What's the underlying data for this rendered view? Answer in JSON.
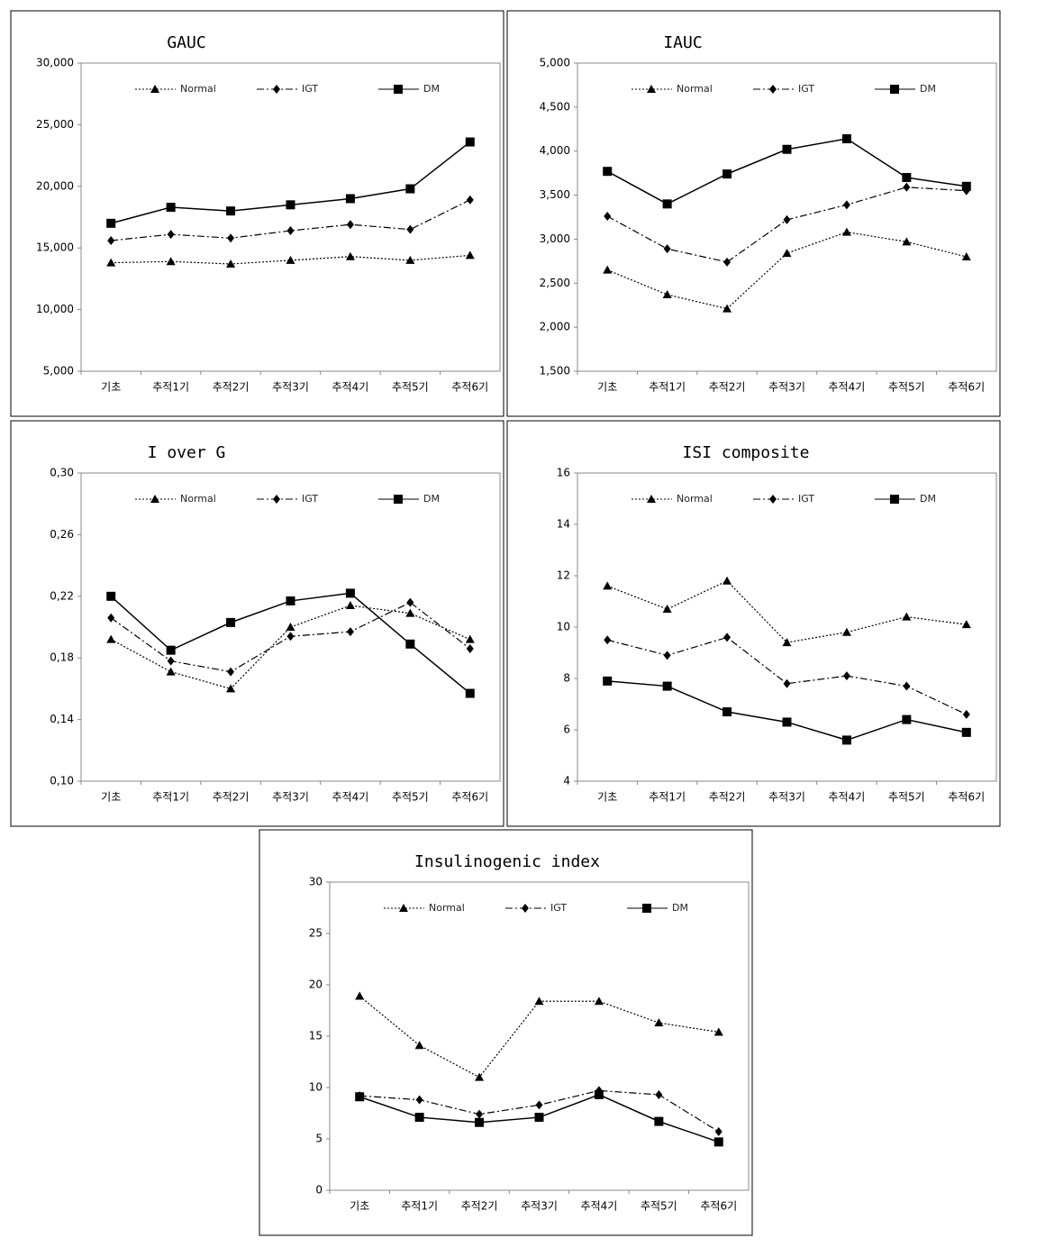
{
  "chart_data": [
    {
      "type": "line",
      "title": "GAUC",
      "categories": [
        "기초",
        "추적1기",
        "추적2기",
        "추적3기",
        "추적4기",
        "추적5기",
        "추적6기"
      ],
      "ylim": [
        5000,
        30000
      ],
      "yticks": [
        {
          "value": 5000,
          "label": "5,000"
        },
        {
          "value": 10000,
          "label": "10,000"
        },
        {
          "value": 15000,
          "label": "15,000"
        },
        {
          "value": 20000,
          "label": "20,000"
        },
        {
          "value": 25000,
          "label": "25,000"
        },
        {
          "value": 30000,
          "label": "30,000"
        }
      ],
      "series": [
        {
          "name": "Normal",
          "color": "#000000",
          "dash": "dotted",
          "marker": "triangle",
          "values": [
            13800,
            13900,
            13700,
            14000,
            14300,
            14000,
            14400
          ]
        },
        {
          "name": "IGT",
          "color": "#000000",
          "dash": "dashdot",
          "marker": "diamond",
          "values": [
            15600,
            16100,
            15800,
            16400,
            16900,
            16500,
            18900
          ]
        },
        {
          "name": "DM",
          "color": "#000000",
          "dash": "solid",
          "marker": "square",
          "values": [
            17000,
            18300,
            18000,
            18500,
            19000,
            19800,
            23600
          ]
        }
      ]
    },
    {
      "type": "line",
      "title": "IAUC",
      "categories": [
        "기초",
        "추적1기",
        "추적2기",
        "추적3기",
        "추적4기",
        "추적5기",
        "추적6기"
      ],
      "ylim": [
        1500,
        5000
      ],
      "yticks": [
        {
          "value": 1500,
          "label": "1,500"
        },
        {
          "value": 2000,
          "label": "2,000"
        },
        {
          "value": 2500,
          "label": "2,500"
        },
        {
          "value": 3000,
          "label": "3,000"
        },
        {
          "value": 3500,
          "label": "3,500"
        },
        {
          "value": 4000,
          "label": "4,000"
        },
        {
          "value": 4500,
          "label": "4,500"
        },
        {
          "value": 5000,
          "label": "5,000"
        }
      ],
      "series": [
        {
          "name": "Normal",
          "color": "#000000",
          "dash": "dotted",
          "marker": "triangle",
          "values": [
            2650,
            2370,
            2210,
            2840,
            3080,
            2970,
            2800
          ]
        },
        {
          "name": "IGT",
          "color": "#000000",
          "dash": "dashdot",
          "marker": "diamond",
          "values": [
            3260,
            2890,
            2740,
            3220,
            3390,
            3590,
            3550
          ]
        },
        {
          "name": "DM",
          "color": "#000000",
          "dash": "solid",
          "marker": "square",
          "values": [
            3770,
            3400,
            3740,
            4020,
            4140,
            3700,
            3600
          ]
        }
      ]
    },
    {
      "type": "line",
      "title": "I over G",
      "categories": [
        "기초",
        "추적1기",
        "추적2기",
        "추적3기",
        "추적4기",
        "추적5기",
        "추적6기"
      ],
      "ylim": [
        0.1,
        0.3
      ],
      "yticks": [
        {
          "value": 0.1,
          "label": "0,10"
        },
        {
          "value": 0.14,
          "label": "0,14"
        },
        {
          "value": 0.18,
          "label": "0,18"
        },
        {
          "value": 0.22,
          "label": "0,22"
        },
        {
          "value": 0.26,
          "label": "0,26"
        },
        {
          "value": 0.3,
          "label": "0,30"
        }
      ],
      "series": [
        {
          "name": "Normal",
          "color": "#000000",
          "dash": "dotted",
          "marker": "triangle",
          "values": [
            0.192,
            0.171,
            0.16,
            0.2,
            0.214,
            0.209,
            0.192
          ]
        },
        {
          "name": "IGT",
          "color": "#000000",
          "dash": "dashdot",
          "marker": "diamond",
          "values": [
            0.206,
            0.178,
            0.171,
            0.194,
            0.197,
            0.216,
            0.186
          ]
        },
        {
          "name": "DM",
          "color": "#000000",
          "dash": "solid",
          "marker": "square",
          "values": [
            0.22,
            0.185,
            0.203,
            0.217,
            0.222,
            0.189,
            0.157
          ]
        }
      ]
    },
    {
      "type": "line",
      "title": "ISI composite",
      "categories": [
        "기초",
        "추적1기",
        "추적2기",
        "추적3기",
        "추적4기",
        "추적5기",
        "추적6기"
      ],
      "ylim": [
        4,
        16
      ],
      "yticks": [
        4,
        6,
        8,
        10,
        12,
        14,
        16
      ],
      "series": [
        {
          "name": "Normal",
          "color": "#000000",
          "dash": "dotted",
          "marker": "triangle",
          "values": [
            11.6,
            10.7,
            11.8,
            9.4,
            9.8,
            10.4,
            10.1
          ]
        },
        {
          "name": "IGT",
          "color": "#000000",
          "dash": "dashdot",
          "marker": "diamond",
          "values": [
            9.5,
            8.9,
            9.6,
            7.8,
            8.1,
            7.7,
            6.6
          ]
        },
        {
          "name": "DM",
          "color": "#000000",
          "dash": "solid",
          "marker": "square",
          "values": [
            7.9,
            7.7,
            6.7,
            6.3,
            5.6,
            6.4,
            5.9
          ]
        }
      ]
    },
    {
      "type": "line",
      "title": "Insulinogenic index",
      "categories": [
        "기초",
        "추적1기",
        "추적2기",
        "추적3기",
        "추적4기",
        "추적5기",
        "추적6기"
      ],
      "ylim": [
        0,
        30
      ],
      "yticks": [
        0,
        5,
        10,
        15,
        20,
        25,
        30
      ],
      "series": [
        {
          "name": "Normal",
          "color": "#000000",
          "dash": "dotted",
          "marker": "triangle",
          "values": [
            18.9,
            14.1,
            11.0,
            18.4,
            18.4,
            16.3,
            15.4
          ]
        },
        {
          "name": "IGT",
          "color": "#000000",
          "dash": "dashdot",
          "marker": "diamond",
          "values": [
            9.2,
            8.8,
            7.4,
            8.3,
            9.7,
            9.3,
            5.7
          ]
        },
        {
          "name": "DM",
          "color": "#000000",
          "dash": "solid",
          "marker": "square",
          "values": [
            9.1,
            7.1,
            6.6,
            7.1,
            9.3,
            6.7,
            4.7
          ]
        }
      ]
    }
  ]
}
